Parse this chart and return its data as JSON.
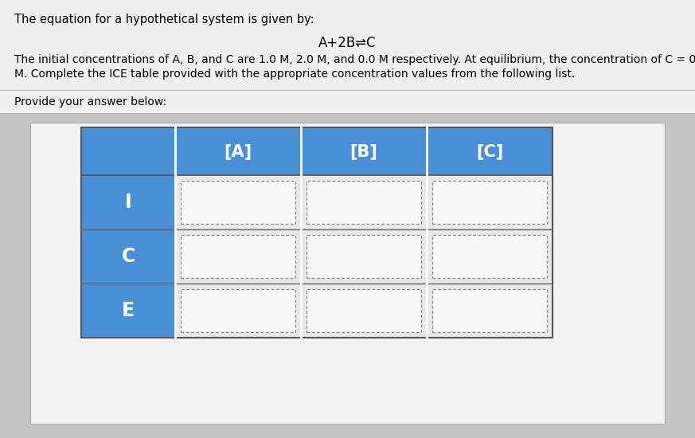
{
  "title_text": "The equation for a hypothetical system is given by:",
  "equation": "A+2B⇌C",
  "body_line1": "The initial concentrations of A, B, and C are 1.0 M, 2.0 M, and 0.0 M respectively. At equilibrium, the concentration of C = 0",
  "body_line2": "M. Complete the ICE table provided with the appropriate concentration values from the following list.",
  "answer_label": "Provide your answer below:",
  "col_headers": [
    "[A]",
    "[B]",
    "[C]"
  ],
  "row_labels": [
    "I",
    "C",
    "E"
  ],
  "header_bg": "#4a90d9",
  "row_label_bg": "#4a90d9",
  "page_bg_top": "#e8e8e8",
  "page_bg_bottom": "#c8c8c8",
  "white_panel_bg": "#f0f0f0",
  "cell_bg": "#f0f0f0",
  "grid_line_color": "#ffffff",
  "separator_color": "#888888",
  "dashed_border_color": "#888888",
  "font_size_title": 10.5,
  "font_size_equation": 12,
  "font_size_body": 10,
  "font_size_header": 15,
  "font_size_row_label": 17,
  "fig_width": 8.73,
  "fig_height": 5.5
}
